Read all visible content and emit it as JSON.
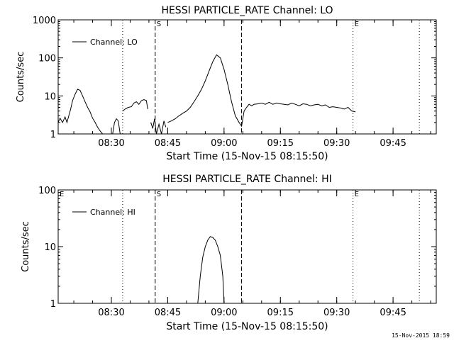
{
  "footer_timestamp": "15-Nov-2015 18:59",
  "chart_data": [
    {
      "type": "line",
      "title": "HESSI PARTICLE_RATE Channel: LO",
      "xlabel": "Start Time (15-Nov-15 08:15:50)",
      "ylabel": "Counts/sec",
      "yscale": "log",
      "ylim": [
        1,
        1000
      ],
      "y_ticks": [
        1,
        10,
        100,
        1000
      ],
      "y_tick_labels": [
        "1",
        "10",
        "100",
        "1000"
      ],
      "xlim": [
        "08:15:50",
        "09:56:30"
      ],
      "x_ticks": [
        "08:30",
        "08:45",
        "09:00",
        "09:15",
        "09:30",
        "09:45"
      ],
      "legend": {
        "placement": "top-left",
        "label": "Channel: LO"
      },
      "markers": [
        {
          "time": "08:33:00",
          "style": "dotted",
          "label": ""
        },
        {
          "time": "08:41:40",
          "style": "dashed",
          "label": "S"
        },
        {
          "time": "09:04:40",
          "style": "dashed",
          "label": ""
        },
        {
          "time": "09:34:20",
          "style": "dotted",
          "label": "E"
        },
        {
          "time": "09:52:00",
          "style": "dotted",
          "label": ""
        }
      ],
      "segments": [
        {
          "x": [
            "08:15:50",
            "08:16:20",
            "08:17:00",
            "08:17:40",
            "08:18:10",
            "08:18:40",
            "08:19:10",
            "08:19:40",
            "08:20:20",
            "08:21:00",
            "08:21:40",
            "08:22:20",
            "08:23:00",
            "08:23:40",
            "08:24:20",
            "08:25:00",
            "08:25:40",
            "08:26:20",
            "08:27:00",
            "08:27:40",
            "08:28:10"
          ],
          "y": [
            2.0,
            2.6,
            2.0,
            2.8,
            2.0,
            3.0,
            4.5,
            7.5,
            11.0,
            15.0,
            14.0,
            10.0,
            7.0,
            5.0,
            3.8,
            2.6,
            2.0,
            1.5,
            1.2,
            1.0,
            1.0
          ]
        },
        {
          "x": [
            "08:30:20",
            "08:30:50",
            "08:31:20",
            "08:31:50",
            "08:32:20"
          ],
          "y": [
            1.0,
            2.0,
            2.5,
            2.2,
            1.0
          ]
        },
        {
          "x": [
            "08:33:00",
            "08:33:40",
            "08:34:30",
            "08:35:20",
            "08:36:00",
            "08:36:40",
            "08:37:20",
            "08:38:00",
            "08:38:40",
            "08:39:20",
            "08:39:40"
          ],
          "y": [
            4.0,
            4.5,
            5.0,
            5.2,
            6.5,
            7.0,
            6.0,
            7.5,
            8.0,
            7.5,
            4.5
          ]
        },
        {
          "x": [
            "08:40:30",
            "08:41:00",
            "08:41:30",
            "08:42:00",
            "08:42:40",
            "08:43:20",
            "08:44:00",
            "08:44:30"
          ],
          "y": [
            2.0,
            1.4,
            2.5,
            1.0,
            1.8,
            1.0,
            2.2,
            1.5
          ]
        },
        {
          "x": [
            "08:45:00",
            "08:46:00",
            "08:47:00",
            "08:48:00",
            "08:49:00",
            "08:50:00",
            "08:51:00",
            "08:52:00",
            "08:53:00",
            "08:54:00",
            "08:55:00",
            "08:56:00",
            "08:57:00",
            "08:58:00",
            "08:59:00",
            "09:00:00",
            "09:01:00",
            "09:02:00",
            "09:03:00",
            "09:04:00",
            "09:04:40",
            "09:05:20",
            "09:06:00",
            "09:06:40",
            "09:07:20",
            "09:08:00",
            "09:09:00",
            "09:10:00",
            "09:11:00",
            "09:12:00",
            "09:13:00",
            "09:14:00",
            "09:15:00",
            "09:16:00",
            "09:17:00",
            "09:18:00",
            "09:19:00",
            "09:20:00",
            "09:21:00",
            "09:22:00",
            "09:23:00",
            "09:24:00",
            "09:25:00",
            "09:26:00",
            "09:27:00",
            "09:28:00",
            "09:29:00",
            "09:30:00",
            "09:31:00",
            "09:32:00",
            "09:33:00",
            "09:34:00",
            "09:35:00"
          ],
          "y": [
            2.0,
            2.2,
            2.5,
            3.0,
            3.5,
            4.0,
            5.0,
            7.0,
            10.0,
            15.0,
            25.0,
            45.0,
            80.0,
            120.0,
            100.0,
            50.0,
            20.0,
            7.0,
            3.0,
            2.0,
            1.6,
            4.0,
            5.0,
            6.0,
            5.5,
            6.0,
            6.2,
            6.5,
            6.0,
            6.8,
            6.0,
            6.5,
            6.2,
            6.0,
            5.8,
            6.5,
            6.0,
            5.5,
            6.2,
            6.0,
            5.5,
            5.8,
            6.0,
            5.5,
            5.8,
            5.0,
            5.2,
            5.0,
            4.8,
            4.5,
            5.0,
            4.0,
            3.8
          ]
        }
      ]
    },
    {
      "type": "line",
      "title": "HESSI PARTICLE_RATE Channel: HI",
      "xlabel": "Start Time (15-Nov-15 08:15:50)",
      "ylabel": "Counts/sec",
      "yscale": "log",
      "ylim": [
        1,
        100
      ],
      "y_ticks": [
        1,
        10,
        100
      ],
      "y_tick_labels": [
        "1",
        "10",
        "100"
      ],
      "xlim": [
        "08:15:50",
        "09:56:30"
      ],
      "x_ticks": [
        "08:30",
        "08:45",
        "09:00",
        "09:15",
        "09:30",
        "09:45"
      ],
      "legend": {
        "placement": "top-left",
        "label": "Channel: HI"
      },
      "markers": [
        {
          "time": "08:15:50",
          "style": "none",
          "label": "E"
        },
        {
          "time": "08:33:00",
          "style": "dotted",
          "label": ""
        },
        {
          "time": "08:41:40",
          "style": "dashed",
          "label": "S"
        },
        {
          "time": "09:04:40",
          "style": "dashed",
          "label": ""
        },
        {
          "time": "09:34:20",
          "style": "dotted",
          "label": "E"
        },
        {
          "time": "09:52:00",
          "style": "dotted",
          "label": ""
        }
      ],
      "segments": [
        {
          "x": [
            "08:53:00",
            "08:53:40",
            "08:54:20",
            "08:55:00",
            "08:55:40",
            "08:56:20",
            "08:57:00",
            "08:57:40",
            "08:58:20",
            "08:59:00",
            "08:59:40",
            "09:00:00"
          ],
          "y": [
            1.0,
            3.0,
            6.5,
            10.0,
            13.0,
            15.0,
            14.5,
            13.0,
            10.0,
            7.0,
            3.0,
            1.0
          ]
        }
      ]
    }
  ]
}
